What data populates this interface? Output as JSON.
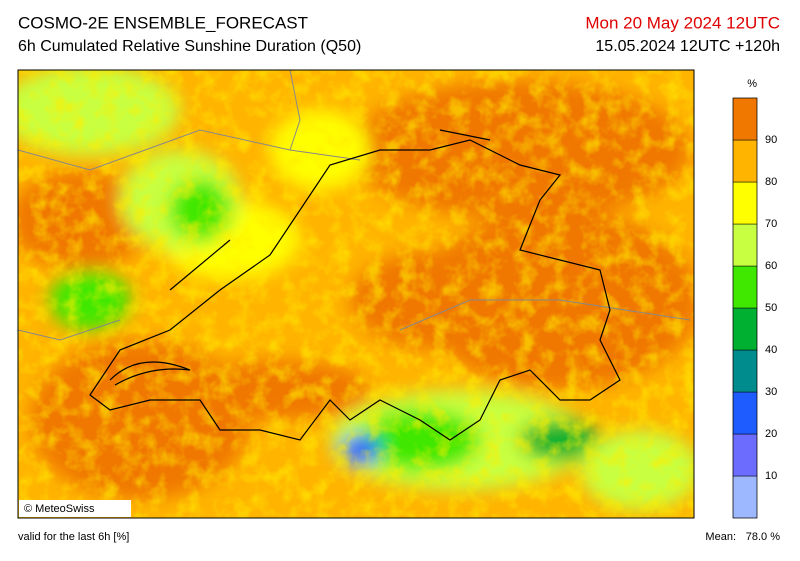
{
  "header": {
    "title": "COSMO-2E ENSEMBLE_FORECAST",
    "subtitle": "6h Cumulated Relative Sunshine Duration (Q50)",
    "valid_time": "Mon 20 May 2024 12UTC",
    "run": "15.05.2024 12UTC +120h"
  },
  "colorbar": {
    "unit": "%",
    "ticks": [
      10,
      20,
      30,
      40,
      50,
      60,
      70,
      80,
      90
    ],
    "colors": [
      "#9db8ff",
      "#6c6cff",
      "#1e5cff",
      "#008c8c",
      "#00b030",
      "#40e800",
      "#c8ff40",
      "#ffff00",
      "#ffb400",
      "#f07800"
    ]
  },
  "credit": "© MeteoSwiss",
  "footer": {
    "note": "valid for the last 6h [%]",
    "mean_label": "Mean:",
    "mean_value": "78.0 %"
  }
}
